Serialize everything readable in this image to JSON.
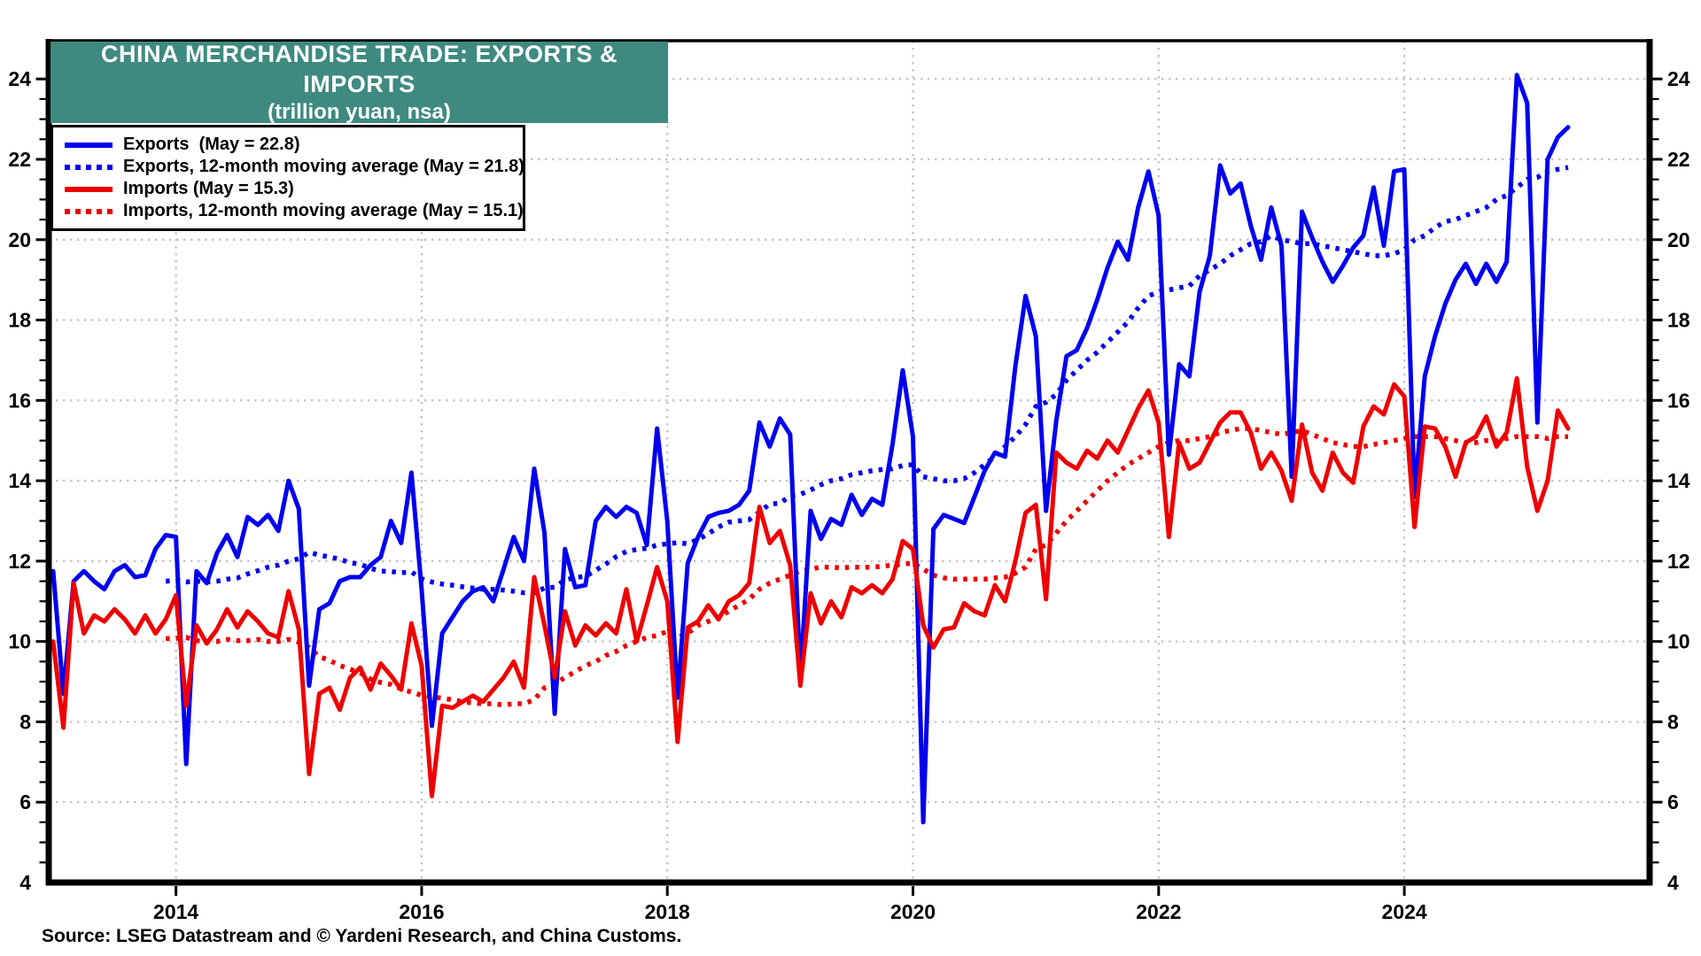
{
  "header": {
    "title": "CHINA MERCHANDISE TRADE: EXPORTS & IMPORTS",
    "subtitle": "(trillion yuan, nsa)",
    "banner_color": "#3E8A80",
    "banner_text_color": "#ffffff"
  },
  "legend": [
    {
      "label": "Exports  (May = 22.8)",
      "color": "#0000EE",
      "style": "solid"
    },
    {
      "label": "Exports, 12-month moving average (May = 21.8)",
      "color": "#0000EE",
      "style": "dotted"
    },
    {
      "label": "Imports (May = 15.3)",
      "color": "#EE0000",
      "style": "solid"
    },
    {
      "label": "Imports, 12-month moving average (May = 15.1)",
      "color": "#EE0000",
      "style": "dotted"
    }
  ],
  "source": "Source: LSEG Datastream and © Yardeni Research, and China Customs.",
  "chart_data": {
    "type": "line",
    "title": "CHINA MERCHANDISE TRADE: EXPORTS & IMPORTS",
    "subtitle": "(trillion yuan, nsa)",
    "ylabel": "trillion yuan",
    "ylim": [
      4,
      24.95
    ],
    "y_major_ticks": [
      4,
      6,
      8,
      10,
      12,
      14,
      16,
      18,
      20,
      22,
      24
    ],
    "y_minor_step": 0.5,
    "x_tick_years": [
      2014,
      2016,
      2018,
      2020,
      2022,
      2024
    ],
    "x_start": "2013-01",
    "x_end": "2025-05",
    "grid": "dotted-gray",
    "grid_color": "#c6c6c6",
    "legend_position": "top-left",
    "series": [
      {
        "name": "Exports",
        "color": "#0000EE",
        "style": "solid",
        "start_month_index": 0,
        "values": [
          11.75,
          8.7,
          11.5,
          11.75,
          11.5,
          11.3,
          11.75,
          11.9,
          11.6,
          11.65,
          12.3,
          12.65,
          12.6,
          6.95,
          11.75,
          11.45,
          12.2,
          12.65,
          12.1,
          13.1,
          12.9,
          13.15,
          12.75,
          14.0,
          13.3,
          8.9,
          10.8,
          10.95,
          11.5,
          11.6,
          11.6,
          11.9,
          12.1,
          13.0,
          12.45,
          14.2,
          11.3,
          7.9,
          10.2,
          10.6,
          11.0,
          11.25,
          11.35,
          11.0,
          11.8,
          12.6,
          12.0,
          14.3,
          12.7,
          8.2,
          12.3,
          11.35,
          11.4,
          13.0,
          13.35,
          13.1,
          13.35,
          13.2,
          12.4,
          15.3,
          13.0,
          8.6,
          11.95,
          12.6,
          13.1,
          13.2,
          13.25,
          13.4,
          13.75,
          15.45,
          14.85,
          15.55,
          15.15,
          9.1,
          13.25,
          12.55,
          13.05,
          12.9,
          13.65,
          13.15,
          13.55,
          13.4,
          14.9,
          16.75,
          15.1,
          5.5,
          12.8,
          13.15,
          13.05,
          12.95,
          13.6,
          14.25,
          14.7,
          14.6,
          16.85,
          18.6,
          17.6,
          13.25,
          15.5,
          17.1,
          17.25,
          17.8,
          18.5,
          19.3,
          19.95,
          19.5,
          20.8,
          21.7,
          20.6,
          14.65,
          16.9,
          16.6,
          18.7,
          19.6,
          21.85,
          21.15,
          21.4,
          20.35,
          19.5,
          20.8,
          19.85,
          14.1,
          20.7,
          20.05,
          19.45,
          18.95,
          19.35,
          19.8,
          20.1,
          21.3,
          19.85,
          21.7,
          21.75,
          13.6,
          16.6,
          17.6,
          18.4,
          19.0,
          19.4,
          18.9,
          19.4,
          18.95,
          19.45,
          24.1,
          23.4,
          15.45,
          22.0,
          22.55,
          22.8
        ]
      },
      {
        "name": "Exports, 12-month moving average",
        "color": "#0000EE",
        "style": "dotted",
        "start_month_index": 11,
        "values": [
          11.5,
          11.52,
          11.48,
          11.5,
          11.48,
          11.5,
          11.55,
          11.58,
          11.68,
          11.76,
          11.85,
          11.9,
          12.0,
          12.06,
          12.22,
          12.15,
          12.1,
          12.05,
          11.96,
          11.92,
          11.82,
          11.75,
          11.74,
          11.71,
          11.73,
          11.56,
          11.48,
          11.43,
          11.4,
          11.36,
          11.33,
          11.3,
          11.3,
          11.28,
          11.25,
          11.21,
          11.21,
          11.33,
          11.35,
          11.53,
          11.59,
          11.62,
          11.77,
          11.93,
          12.11,
          12.24,
          12.29,
          12.32,
          12.4,
          12.43,
          12.46,
          12.43,
          12.54,
          12.68,
          12.85,
          12.97,
          13.0,
          13.03,
          13.22,
          13.42,
          13.44,
          13.62,
          13.66,
          13.77,
          13.9,
          14.0,
          14.05,
          14.15,
          14.2,
          14.25,
          14.28,
          14.3,
          14.38,
          14.4,
          14.1,
          14.05,
          14.0,
          14.0,
          14.05,
          14.2,
          14.4,
          14.6,
          14.85,
          15.1,
          15.4,
          15.85,
          15.95,
          16.15,
          16.5,
          16.75,
          17.0,
          17.2,
          17.45,
          17.7,
          17.95,
          18.3,
          18.6,
          18.7,
          18.75,
          18.8,
          18.85,
          19.1,
          19.25,
          19.4,
          19.6,
          19.75,
          19.9,
          19.95,
          20.1,
          20.0,
          19.95,
          19.9,
          19.9,
          19.85,
          19.8,
          19.75,
          19.7,
          19.65,
          19.6,
          19.6,
          19.65,
          19.75,
          20.0,
          20.1,
          20.3,
          20.45,
          20.5,
          20.6,
          20.7,
          20.8,
          21.0,
          21.1,
          21.3,
          21.5,
          21.55,
          21.7,
          21.75,
          21.8
        ]
      },
      {
        "name": "Imports",
        "color": "#EE0000",
        "style": "solid",
        "start_month_index": 0,
        "values": [
          10.0,
          7.85,
          11.45,
          10.2,
          10.65,
          10.5,
          10.8,
          10.55,
          10.2,
          10.65,
          10.2,
          10.55,
          11.15,
          8.4,
          10.4,
          9.95,
          10.3,
          10.8,
          10.35,
          10.75,
          10.5,
          10.2,
          10.1,
          11.25,
          10.3,
          6.7,
          8.7,
          8.85,
          8.3,
          9.1,
          9.35,
          8.8,
          9.45,
          9.15,
          8.8,
          10.45,
          9.4,
          6.15,
          8.4,
          8.35,
          8.5,
          8.65,
          8.5,
          8.8,
          9.1,
          9.5,
          8.85,
          11.6,
          10.4,
          9.1,
          10.75,
          9.9,
          10.4,
          10.15,
          10.45,
          10.2,
          11.3,
          10.0,
          10.9,
          11.85,
          11.0,
          7.5,
          10.35,
          10.5,
          10.9,
          10.55,
          11.0,
          11.15,
          11.45,
          13.35,
          12.45,
          12.75,
          11.9,
          8.9,
          11.2,
          10.45,
          11.0,
          10.6,
          11.35,
          11.2,
          11.4,
          11.2,
          11.55,
          12.5,
          12.3,
          10.4,
          9.85,
          10.3,
          10.35,
          10.95,
          10.75,
          10.65,
          11.4,
          11.0,
          12.0,
          13.2,
          13.4,
          11.05,
          14.7,
          14.45,
          14.3,
          14.75,
          14.55,
          15.0,
          14.7,
          15.25,
          15.8,
          16.25,
          15.45,
          12.6,
          14.95,
          14.3,
          14.45,
          14.95,
          15.45,
          15.7,
          15.7,
          15.2,
          14.3,
          14.7,
          14.25,
          13.5,
          15.4,
          14.2,
          13.75,
          14.7,
          14.2,
          13.95,
          15.35,
          15.85,
          15.65,
          16.4,
          16.1,
          12.85,
          15.35,
          15.3,
          14.85,
          14.1,
          14.95,
          15.1,
          15.6,
          14.85,
          15.2,
          16.55,
          14.35,
          13.25,
          14.0,
          15.75,
          15.3
        ]
      },
      {
        "name": "Imports, 12-month moving average",
        "color": "#EE0000",
        "style": "dotted",
        "start_month_index": 11,
        "values": [
          10.07,
          10.08,
          10.1,
          10.02,
          10.0,
          10.0,
          10.05,
          10.02,
          10.02,
          10.05,
          10.0,
          10.0,
          10.05,
          9.98,
          9.85,
          9.62,
          9.53,
          9.4,
          9.31,
          9.22,
          9.06,
          8.98,
          8.93,
          8.82,
          8.74,
          8.66,
          8.62,
          8.59,
          8.55,
          8.5,
          8.47,
          8.45,
          8.45,
          8.42,
          8.45,
          8.45,
          8.55,
          8.85,
          8.95,
          9.1,
          9.25,
          9.4,
          9.5,
          9.65,
          9.75,
          9.9,
          10.0,
          10.1,
          10.15,
          10.25,
          10.1,
          10.2,
          10.4,
          10.5,
          10.6,
          10.75,
          10.9,
          11.05,
          11.3,
          11.45,
          11.55,
          11.65,
          11.75,
          11.8,
          11.85,
          11.85,
          11.83,
          11.85,
          11.85,
          11.85,
          11.87,
          11.9,
          11.92,
          11.95,
          11.8,
          11.65,
          11.58,
          11.55,
          11.55,
          11.55,
          11.55,
          11.58,
          11.6,
          11.7,
          11.85,
          12.3,
          12.4,
          12.7,
          13.0,
          13.25,
          13.5,
          13.75,
          14.0,
          14.2,
          14.4,
          14.55,
          14.7,
          14.85,
          14.95,
          15.0,
          15.0,
          15.05,
          15.1,
          15.2,
          15.25,
          15.3,
          15.3,
          15.25,
          15.2,
          15.15,
          15.2,
          15.25,
          15.15,
          15.05,
          14.95,
          14.9,
          14.85,
          14.85,
          14.9,
          14.95,
          15.0,
          15.05,
          15.1,
          15.1,
          15.1,
          15.05,
          15.0,
          14.95,
          14.95,
          15.0,
          15.0,
          15.05,
          15.1,
          15.1,
          15.1,
          15.05,
          15.1,
          15.1
        ]
      }
    ]
  }
}
